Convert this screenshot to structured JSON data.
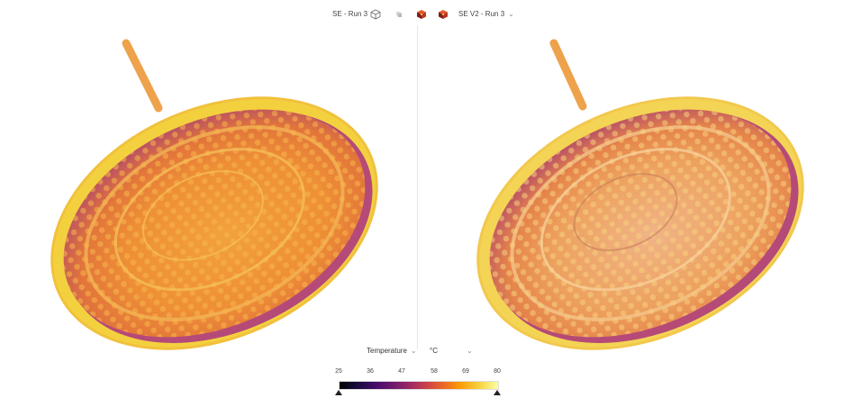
{
  "toolbar": {
    "left_run": "SE - Run 3",
    "right_run": "SE V2 - Run 3",
    "icons": [
      "cube-outline-icon",
      "cube-faded-icon",
      "cube-colored-icon",
      "cube-colored-icon"
    ]
  },
  "controls": {
    "field": "Temperature",
    "unit": "°C"
  },
  "legend": {
    "ticks": [
      "25",
      "36",
      "47",
      "58",
      "69",
      "80"
    ],
    "colormap": [
      "#000004",
      "#4a0c6b",
      "#a52c60",
      "#ed6925",
      "#fb9b06",
      "#fcffa4"
    ]
  }
}
